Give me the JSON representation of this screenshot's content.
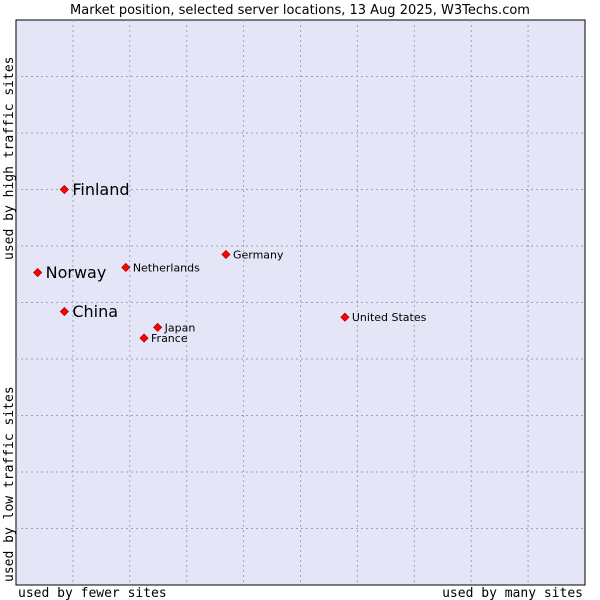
{
  "chart_data": {
    "type": "scatter",
    "title": "Market position, selected server locations, 13 Aug 2025, W3Techs.com",
    "x_axis": {
      "low_label": "used by fewer sites",
      "high_label": "used by many sites"
    },
    "y_axis": {
      "low_label": "used by low traffic sites",
      "high_label": "used by high traffic sites"
    },
    "grid": true,
    "point_color": "#ff0000",
    "plot_background": "#e4e6f8",
    "points": [
      {
        "label": "Finland",
        "x": 0.085,
        "y": 0.7,
        "emphasis": true
      },
      {
        "label": "Norway",
        "x": 0.038,
        "y": 0.553,
        "emphasis": true
      },
      {
        "label": "China",
        "x": 0.085,
        "y": 0.484,
        "emphasis": true
      },
      {
        "label": "Germany",
        "x": 0.369,
        "y": 0.585,
        "emphasis": false
      },
      {
        "label": "Netherlands",
        "x": 0.193,
        "y": 0.562,
        "emphasis": false
      },
      {
        "label": "United States",
        "x": 0.578,
        "y": 0.474,
        "emphasis": false
      },
      {
        "label": "Japan",
        "x": 0.249,
        "y": 0.456,
        "emphasis": false
      },
      {
        "label": "France",
        "x": 0.225,
        "y": 0.437,
        "emphasis": false
      }
    ]
  }
}
